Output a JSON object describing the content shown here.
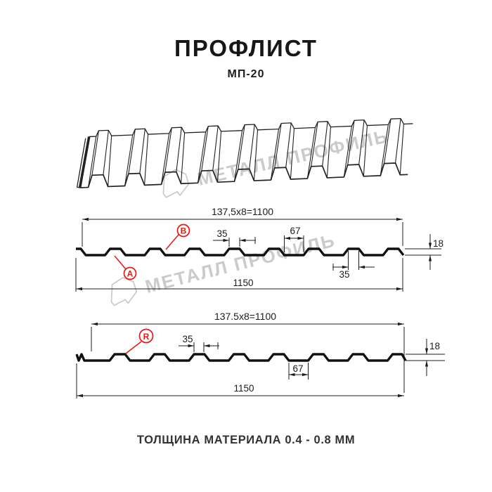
{
  "page": {
    "title": "ПРОФЛИСТ",
    "subtitle": "МП-20",
    "footer": "ТОЛЩИНА МАТЕРИАЛА 0.4 - 0.8 ММ"
  },
  "watermark": {
    "text": "МЕТАЛЛ ПРОФИЛЬ"
  },
  "colors": {
    "accent_red": "#e8170f",
    "line": "#1c1c1c",
    "watermark_gray": "#cbcbcb",
    "background": "#ffffff"
  },
  "sections": {
    "top": {
      "formula": "137,5x8=1100",
      "rib_top_width": "35",
      "valley_width": "67",
      "profile_height": "18",
      "rib_bottom_width": "35",
      "total_width": "1150",
      "labels": {
        "a": "A",
        "b": "B"
      }
    },
    "bottom": {
      "formula": "137.5x8=1100",
      "rib_top_width": "35",
      "valley_width": "67",
      "profile_height": "18",
      "total_width": "1150",
      "labels": {
        "r": "R"
      }
    }
  }
}
